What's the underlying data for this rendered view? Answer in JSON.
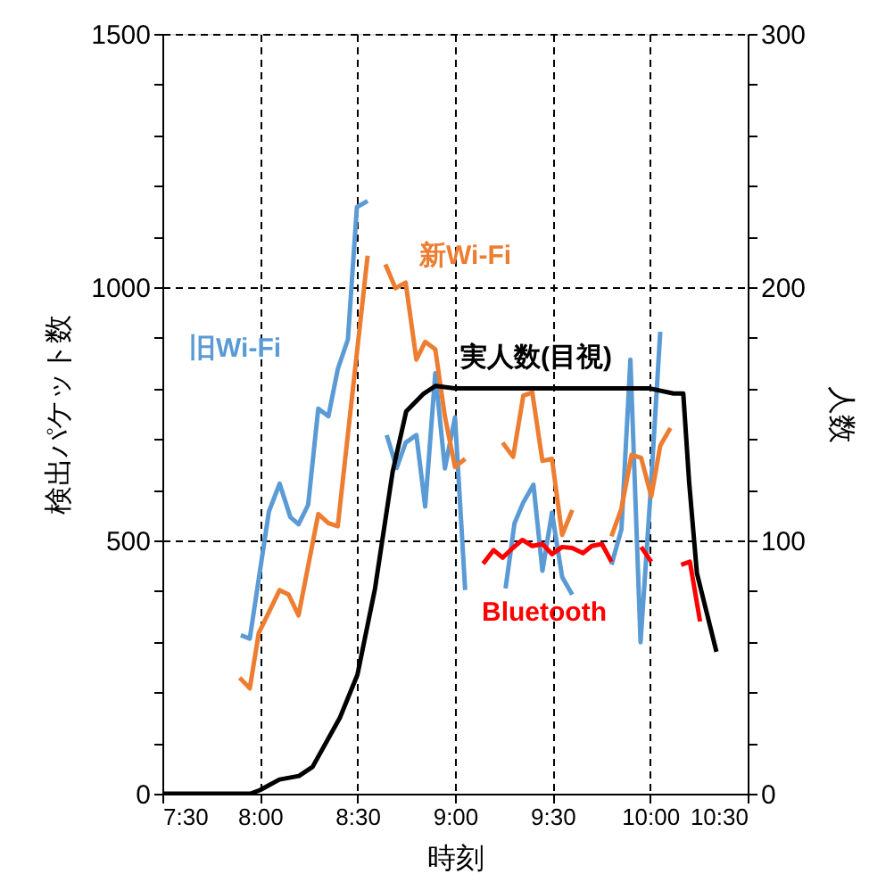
{
  "chart_data": {
    "type": "line",
    "xlabel": "時刻",
    "ylabel": "検出パケット数",
    "y2label": "人数",
    "xlim": [
      7.5,
      10.5
    ],
    "xticks": [
      {
        "value": 7.5,
        "label": "7:30"
      },
      {
        "value": 8.0,
        "label": "8:00"
      },
      {
        "value": 8.5,
        "label": "8:30"
      },
      {
        "value": 9.0,
        "label": "9:00"
      },
      {
        "value": 9.5,
        "label": "9:30"
      },
      {
        "value": 10.0,
        "label": "10:00"
      },
      {
        "value": 10.5,
        "label": "10:30"
      }
    ],
    "ylim": [
      0,
      1500
    ],
    "yticks": [
      0,
      {
        "value": 100,
        "label": null
      },
      {
        "value": 200,
        "label": null
      },
      {
        "value": 300,
        "label": null
      },
      {
        "value": 400,
        "label": null
      },
      500,
      {
        "value": 600,
        "label": null
      },
      {
        "value": 700,
        "label": null
      },
      {
        "value": 800,
        "label": null
      },
      {
        "value": 900,
        "label": null
      },
      1000,
      {
        "value": 1100,
        "label": null
      },
      {
        "value": 1200,
        "label": null
      },
      {
        "value": 1300,
        "label": null
      },
      {
        "value": 1400,
        "label": null
      },
      1500
    ],
    "y2lim": [
      0,
      300
    ],
    "y2ticks": [
      0,
      {
        "value": 20,
        "label": null
      },
      {
        "value": 40,
        "label": null
      },
      {
        "value": 60,
        "label": null
      },
      {
        "value": 80,
        "label": null
      },
      100,
      {
        "value": 120,
        "label": null
      },
      {
        "value": 140,
        "label": null
      },
      {
        "value": 160,
        "label": null
      },
      {
        "value": 180,
        "label": null
      },
      200,
      {
        "value": 220,
        "label": null
      },
      {
        "value": 240,
        "label": null
      },
      {
        "value": 260,
        "label": null
      },
      {
        "value": 280,
        "label": null
      },
      300
    ],
    "grid": true,
    "line_style": "solid",
    "marker": "none",
    "series": [
      {
        "name": "旧Wi-Fi",
        "color": "#5b9bd5",
        "x": [
          7.902,
          7.948,
          8.046,
          8.101,
          8.156,
          8.198,
          8.247,
          8.299,
          8.351,
          8.399,
          8.451,
          8.497,
          8.552,
          8.6,
          8.65,
          8.701,
          8.747,
          8.802,
          8.847,
          8.899,
          8.948,
          9.0,
          9.052,
          9.15,
          9.259,
          9.305,
          9.35,
          9.402,
          9.448,
          9.497,
          9.549,
          9.601,
          9.7,
          9.802,
          9.853,
          9.899,
          9.951,
          10.0,
          10.052
        ],
        "values": [
          313,
          306,
          557,
          612,
          546,
          532,
          570,
          760,
          745,
          838,
          897,
          1158,
          1170,
          null,
          708,
          643,
          693,
          708,
          567,
          830,
          642,
          743,
          402,
          null,
          405,
          534,
          575,
          610,
          440,
          555,
          428,
          393,
          null,
          452,
          522,
          857,
          299,
          581,
          912
        ]
      },
      {
        "name": "新Wi-Fi",
        "color": "#ed7d31",
        "x": [
          7.896,
          7.948,
          7.994,
          8.101,
          8.147,
          8.198,
          8.299,
          8.351,
          8.399,
          8.552,
          8.6,
          8.643,
          8.695,
          8.747,
          8.802,
          8.847,
          8.899,
          8.948,
          9.0,
          9.052,
          9.15,
          9.244,
          9.298,
          9.35,
          9.396,
          9.448,
          9.497,
          9.549,
          9.601,
          9.7,
          9.802,
          9.853,
          9.905,
          9.954,
          10.006,
          10.052,
          10.104
        ],
        "values": [
          229,
          208,
          317,
          402,
          393,
          352,
          552,
          534,
          528,
          1062,
          null,
          1045,
          998,
          1009,
          857,
          892,
          877,
          745,
          645,
          661,
          null,
          693,
          665,
          786,
          792,
          657,
          661,
          511,
          560,
          null,
          508,
          563,
          669,
          663,
          587,
          687,
          722
        ]
      },
      {
        "name": "実人数(目視)",
        "color": "#000000",
        "axis": "y2",
        "x": [
          7.5,
          7.95,
          8.0,
          8.1,
          8.2,
          8.27,
          8.41,
          8.5,
          8.59,
          8.68,
          8.75,
          8.84,
          8.9,
          9.0,
          9.5,
          10.0,
          10.12,
          10.17,
          10.2,
          10.24,
          10.34
        ],
        "values": [
          0,
          0,
          1.4,
          5.6,
          7,
          10.6,
          30,
          47,
          81,
          127,
          151,
          158,
          161,
          160,
          160,
          160,
          158,
          158,
          123,
          87,
          56
        ]
      },
      {
        "name": "Bluetooth",
        "color": "#ff0000",
        "x": [
          9.144,
          9.198,
          9.244,
          9.296,
          9.345,
          9.396,
          9.448,
          9.497,
          9.549,
          9.601,
          9.656,
          9.701,
          9.753,
          9.802,
          9.88,
          9.954,
          10.006,
          10.08,
          10.159,
          10.204,
          10.256
        ],
        "values": [
          454,
          481,
          466,
          485,
          501,
          489,
          493,
          473,
          487,
          485,
          475,
          489,
          493,
          458,
          null,
          487,
          458,
          null,
          452,
          458,
          340
        ]
      }
    ]
  }
}
